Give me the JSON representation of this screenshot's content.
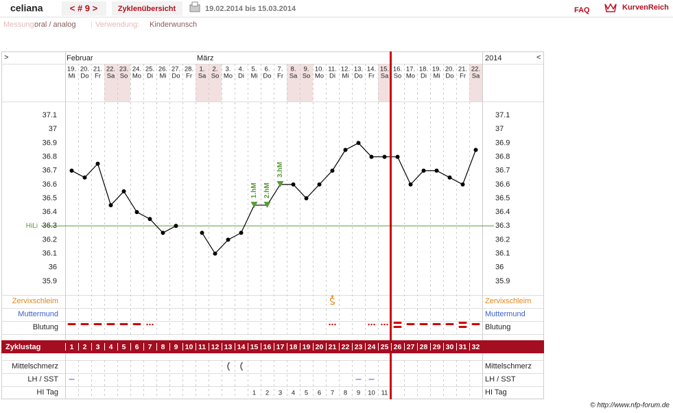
{
  "header": {
    "user": "celiana",
    "cycle": "< # 9 >",
    "tab": "Zyklenübersicht",
    "range": "19.02.2014 bis 15.03.2014",
    "faq": "FAQ",
    "logo": "KurvenReich"
  },
  "meta": {
    "measure_label": "Messung:",
    "measure": "oral / analog",
    "separator": "|",
    "use_label": "Verwendung:",
    "use": "Kinderwunsch"
  },
  "nav": {
    "prev": ">",
    "next": "<"
  },
  "rows": {
    "zervix": "Zervixschleim",
    "muttermund": "Muttermund",
    "blutung": "Blutung",
    "zyklustag": "Zyklustag",
    "mittelschmerz": "Mittelschmerz",
    "lh": "LH / SST",
    "hitag": "HI Tag"
  },
  "footer": "© http://www.nfp-forum.de",
  "chart_data": {
    "type": "line",
    "months": [
      "Februar",
      "März"
    ],
    "year": "2014",
    "categories": [
      "19.",
      "20.",
      "21.",
      "22.",
      "23.",
      "24.",
      "25.",
      "26.",
      "27.",
      "28.",
      "1.",
      "2.",
      "3.",
      "4.",
      "5.",
      "6.",
      "7.",
      "8.",
      "9.",
      "10.",
      "11.",
      "12.",
      "13.",
      "14.",
      "15.",
      "16.",
      "17.",
      "18.",
      "19.",
      "20.",
      "21.",
      "22."
    ],
    "weekdays": [
      "Mi",
      "Do",
      "Fr",
      "Sa",
      "So",
      "Mo",
      "Di",
      "Mi",
      "Do",
      "Fr",
      "Sa",
      "So",
      "Mo",
      "Di",
      "Mi",
      "Do",
      "Fr",
      "Sa",
      "So",
      "Mo",
      "Di",
      "Mi",
      "Do",
      "Fr",
      "Sa",
      "So",
      "Mo",
      "Di",
      "Mi",
      "Do",
      "Fr",
      "Sa"
    ],
    "values": [
      36.7,
      36.65,
      36.75,
      36.45,
      36.55,
      36.4,
      36.35,
      36.25,
      36.3,
      null,
      36.25,
      36.1,
      36.2,
      36.25,
      36.45,
      36.45,
      36.6,
      36.6,
      36.5,
      36.6,
      36.7,
      36.85,
      36.9,
      36.8,
      36.8,
      36.8,
      36.6,
      36.7,
      36.7,
      36.65,
      36.6,
      36.85
    ],
    "color": "#000000",
    "ylim": [
      35.8,
      37.2
    ],
    "yticks": [
      37.1,
      37,
      36.9,
      36.8,
      36.7,
      36.6,
      36.5,
      36.4,
      36.3,
      36.2,
      36.1,
      36,
      35.9
    ],
    "grid": false,
    "coverline": {
      "label": "HiLi",
      "value": 36.3,
      "color": "#5a9a3a"
    },
    "annotations": [
      "1.hM",
      "2.hM",
      "3.hM"
    ],
    "cycle_days": [
      1,
      2,
      3,
      4,
      5,
      6,
      7,
      8,
      9,
      10,
      11,
      12,
      13,
      14,
      15,
      16,
      17,
      18,
      19,
      20,
      21,
      22,
      23,
      24,
      25,
      26,
      27,
      28,
      29,
      30,
      31,
      32
    ],
    "hi_days": [
      1,
      2,
      3,
      4,
      5,
      6,
      7,
      8,
      9,
      10,
      11
    ]
  }
}
